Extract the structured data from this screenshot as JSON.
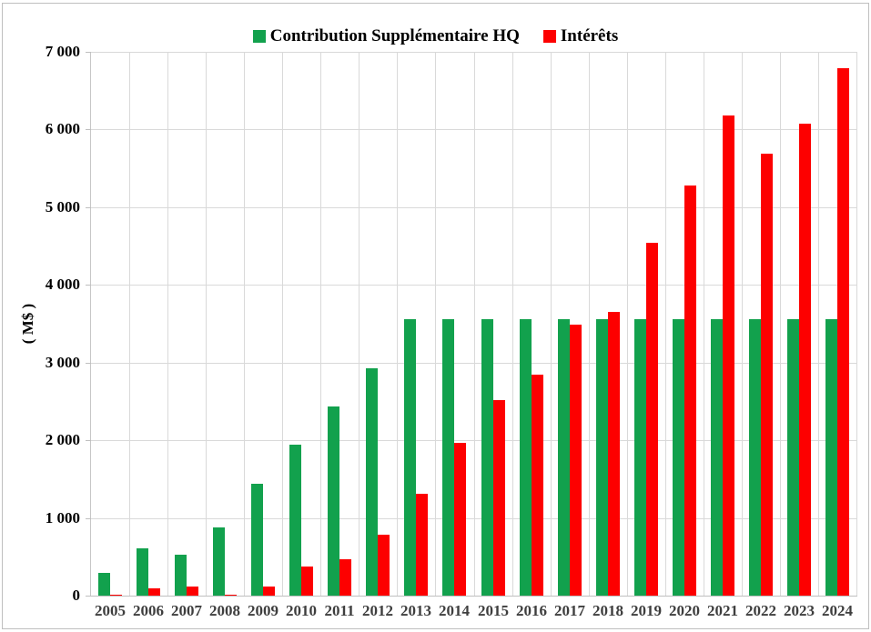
{
  "page": {
    "background_color": "#ffffff",
    "border_color": "#bfbfbf"
  },
  "chart_data": {
    "type": "bar",
    "title": "",
    "xlabel": "",
    "ylabel": "( M$ )",
    "ylim": [
      0,
      7000
    ],
    "ytick_step": 1000,
    "ytick_labels": [
      "0",
      "1 000",
      "2 000",
      "3 000",
      "4 000",
      "5 000",
      "6 000",
      "7 000"
    ],
    "grid": {
      "horizontal": true,
      "vertical": true,
      "color": "#d9d9d9"
    },
    "legend_position": "top-center",
    "categories": [
      "2005",
      "2006",
      "2007",
      "2008",
      "2009",
      "2010",
      "2011",
      "2012",
      "2013",
      "2014",
      "2015",
      "2016",
      "2017",
      "2018",
      "2019",
      "2020",
      "2021",
      "2022",
      "2023",
      "2024"
    ],
    "series": [
      {
        "name": "Contribution Supplémentaire HQ",
        "color": "#12A14D",
        "values": [
          290,
          605,
          530,
          875,
          1440,
          1940,
          2440,
          2925,
          3560,
          3560,
          3560,
          3560,
          3560,
          3560,
          3560,
          3560,
          3560,
          3560,
          3560,
          3560
        ]
      },
      {
        "name": "Intérêts",
        "color": "#FD0000",
        "values": [
          15,
          90,
          120,
          10,
          120,
          370,
          465,
          780,
          1310,
          1970,
          2515,
          2840,
          3490,
          3655,
          4540,
          5275,
          6175,
          5685,
          6070,
          6785
        ]
      }
    ]
  }
}
